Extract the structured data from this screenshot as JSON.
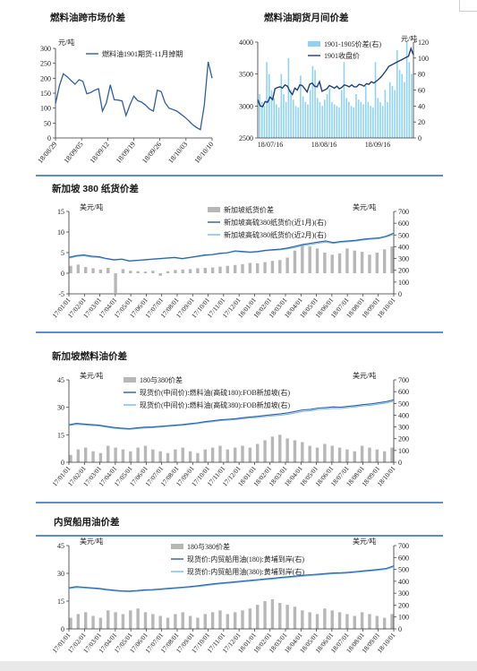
{
  "sections": {
    "title1": "燃料油跨市场价差",
    "title2": "燃料油期货月间价差",
    "title3": "新加坡 380 纸货价差",
    "title4": "新加坡燃料油价差",
    "title5": "内贸船用油价差"
  },
  "colors": {
    "rule": "#5b8ec9",
    "line_dark": "#2e5fa3",
    "line_light": "#79b8e6",
    "bar_grey": "#b7b7b7",
    "bar_grey_dark": "#7f7f7f",
    "bar_cyan": "#8ed3f5"
  },
  "chart_data": [
    {
      "id": "c1",
      "type": "line",
      "unit": "元/吨",
      "ylim": [
        0,
        300
      ],
      "yticks": [
        0,
        50,
        100,
        150,
        200,
        250,
        300
      ],
      "xticks": [
        "18/08/29",
        "18/09/05",
        "18/09/12",
        "18/09/19",
        "18/09/26",
        "18/10/03",
        "18/10/10"
      ],
      "legend": "top-right",
      "series": [
        {
          "name": "燃料油1901期货-11月掉期",
          "values": [
            115,
            175,
            215,
            205,
            192,
            180,
            195,
            190,
            148,
            152,
            160,
            165,
            90,
            118,
            178,
            128,
            127,
            124,
            75,
            110,
            140,
            125,
            120,
            110,
            97,
            90,
            160,
            155,
            118,
            100,
            95,
            90,
            80,
            70,
            58,
            45,
            35,
            28,
            110,
            255,
            200
          ]
        }
      ]
    },
    {
      "id": "c2",
      "type": "line",
      "unit": "元/吨",
      "ylim_left": [
        2500,
        4000
      ],
      "yticks_left": [
        2500,
        3000,
        3500,
        4000
      ],
      "ylim_right": [
        0,
        120
      ],
      "yticks_right": [
        0,
        20,
        40,
        60,
        80,
        100,
        120
      ],
      "xticks": [
        "18/07/16",
        "18/08/16",
        "18/09/16"
      ],
      "legend": "top-right",
      "series": [
        {
          "name": "1901-1905价差(右)",
          "kind": "bar",
          "axis": "right",
          "values": [
            55,
            45,
            40,
            95,
            80,
            60,
            50,
            42,
            38,
            80,
            55,
            45,
            100,
            60,
            48,
            40,
            38,
            78,
            52,
            45,
            42,
            60,
            90,
            85,
            50,
            45,
            40,
            48,
            55,
            62,
            45,
            42,
            40,
            38,
            60,
            95,
            50,
            45,
            40,
            38,
            55,
            48,
            45,
            42,
            65,
            45,
            40,
            38,
            95,
            50,
            45,
            40,
            60,
            45,
            70,
            65,
            60,
            110,
            85,
            80,
            70,
            120,
            95,
            80
          ]
        },
        {
          "name": "1901收盘价",
          "kind": "line",
          "axis": "left",
          "values": [
            3100,
            3000,
            2990,
            3070,
            3060,
            3140,
            3100,
            3270,
            3290,
            3300,
            3280,
            3330,
            3310,
            3230,
            3180,
            3280,
            3250,
            3330,
            3320,
            3270,
            3220,
            3340,
            3360,
            3310,
            3300,
            3380,
            3230,
            3250,
            3270,
            3320,
            3300,
            3280,
            3310,
            3270,
            3290,
            3330,
            3320,
            3300,
            3330,
            3300,
            3300,
            3340,
            3330,
            3310,
            3350,
            3340,
            3380,
            3360,
            3390,
            3420,
            3460,
            3510,
            3560,
            3620,
            3640,
            3660,
            3680,
            3700,
            3720,
            3740,
            3760,
            3780,
            3900,
            3800
          ]
        }
      ]
    },
    {
      "id": "c3",
      "type": "line",
      "unit_left": "美元/吨",
      "unit_right": "美元/吨",
      "ylim_left": [
        -5,
        15
      ],
      "yticks_left": [
        -5,
        0,
        5,
        10,
        15
      ],
      "ylim_right": [
        0,
        700
      ],
      "yticks_right": [
        0,
        100,
        200,
        300,
        400,
        500,
        600,
        700
      ],
      "xticks": [
        "17/01/01",
        "17/02/01",
        "17/03/01",
        "17/04/01",
        "17/05/01",
        "17/06/01",
        "17/07/01",
        "17/08/01",
        "17/09/01",
        "17/10/01",
        "17/11/01",
        "17/12/01",
        "18/01/01",
        "18/02/01",
        "18/03/01",
        "18/04/01",
        "18/05/01",
        "18/06/01",
        "18/07/01",
        "18/08/01",
        "18/09/01",
        "18/10/01"
      ],
      "legend": "top-center",
      "series": [
        {
          "name": "新加坡纸货价差",
          "kind": "bar",
          "axis": "left",
          "values": [
            1.8,
            2.1,
            1.5,
            1.2,
            0.9,
            1.3,
            -4.8,
            1.0,
            0.6,
            0.5,
            0.4,
            0.6,
            -0.6,
            0.5,
            0.8,
            0.9,
            1.0,
            1.2,
            1.3,
            1.4,
            1.6,
            1.8,
            2.0,
            2.2,
            2.5,
            2.4,
            2.7,
            3.0,
            3.2,
            3.8,
            5.5,
            7.0,
            6.5,
            6.0,
            5.0,
            4.5,
            4.8,
            6.0,
            5.5,
            5.2,
            4.5,
            5.0,
            5.8,
            6.5
          ]
        },
        {
          "name": "新加坡高硫380纸货价(近1月)(右)",
          "kind": "line",
          "axis": "right",
          "values": [
            310,
            325,
            330,
            320,
            315,
            300,
            290,
            295,
            280,
            285,
            290,
            295,
            300,
            305,
            310,
            300,
            310,
            320,
            330,
            335,
            345,
            350,
            365,
            360,
            355,
            360,
            370,
            375,
            380,
            390,
            405,
            420,
            430,
            440,
            450,
            435,
            445,
            450,
            455,
            465,
            470,
            475,
            490,
            515
          ]
        },
        {
          "name": "新加坡高硫380纸货价(近2月)(右)",
          "kind": "line",
          "axis": "right",
          "values": [
            303,
            318,
            323,
            312,
            308,
            296,
            286,
            292,
            276,
            281,
            286,
            292,
            296,
            302,
            306,
            296,
            307,
            315,
            325,
            330,
            340,
            346,
            360,
            354,
            350,
            355,
            365,
            370,
            374,
            383,
            395,
            410,
            420,
            430,
            440,
            428,
            438,
            443,
            448,
            458,
            464,
            468,
            483,
            505
          ]
        }
      ]
    },
    {
      "id": "c4",
      "type": "line",
      "unit_left": "美元/吨",
      "unit_right": "美元/吨",
      "ylim_left": [
        0,
        45
      ],
      "yticks_left": [
        0,
        15,
        30,
        45
      ],
      "ylim_right": [
        0,
        700
      ],
      "yticks_right": [
        0,
        100,
        200,
        300,
        400,
        500,
        600,
        700
      ],
      "xticks": [
        "17/01/01",
        "17/02/01",
        "17/03/01",
        "17/04/01",
        "17/05/01",
        "17/06/01",
        "17/07/01",
        "17/08/01",
        "17/09/01",
        "17/10/01",
        "17/11/01",
        "17/12/01",
        "18/01/01",
        "18/02/01",
        "18/03/01",
        "18/04/01",
        "18/05/01",
        "18/06/01",
        "18/07/01",
        "18/08/01",
        "18/09/01",
        "18/10/01"
      ],
      "legend": "top-center",
      "series": [
        {
          "name": "180与380价差",
          "kind": "bar",
          "axis": "left",
          "values": [
            4,
            7,
            8,
            6,
            5,
            9,
            8,
            7,
            6,
            8,
            9,
            7,
            6,
            5,
            7,
            8,
            6,
            5,
            7,
            8,
            9,
            7,
            8,
            9,
            8,
            10,
            12,
            14,
            15,
            13,
            12,
            11,
            9,
            8,
            10,
            9,
            8,
            7,
            6,
            9,
            8,
            7,
            6,
            8
          ]
        },
        {
          "name": "现货价(中间价):燃料油(高硫180):FOB新加坡(右)",
          "kind": "line",
          "axis": "right",
          "values": [
            318,
            330,
            325,
            320,
            315,
            305,
            295,
            290,
            285,
            292,
            298,
            300,
            305,
            310,
            315,
            320,
            328,
            335,
            345,
            352,
            360,
            365,
            370,
            378,
            385,
            390,
            398,
            405,
            412,
            420,
            432,
            445,
            450,
            460,
            465,
            470,
            468,
            475,
            482,
            490,
            496,
            505,
            515,
            530
          ]
        },
        {
          "name": "现货价(中间价):燃料油(高硫380):FOB新加坡(右)",
          "kind": "line",
          "axis": "right",
          "values": [
            312,
            322,
            318,
            313,
            308,
            298,
            288,
            284,
            279,
            286,
            291,
            294,
            299,
            304,
            309,
            314,
            321,
            329,
            338,
            345,
            353,
            358,
            363,
            370,
            377,
            381,
            388,
            394,
            400,
            408,
            420,
            432,
            438,
            448,
            453,
            458,
            457,
            464,
            471,
            479,
            485,
            494,
            504,
            518
          ]
        }
      ]
    },
    {
      "id": "c5",
      "type": "line",
      "unit_left": "美元/吨",
      "unit_right": "美元/吨",
      "ylim_left": [
        0,
        45
      ],
      "yticks_left": [
        0,
        15,
        30,
        45
      ],
      "ylim_right": [
        0,
        700
      ],
      "yticks_right": [
        0,
        100,
        200,
        300,
        400,
        500,
        600,
        700
      ],
      "xticks": [
        "17/01/01",
        "17/02/01",
        "17/03/01",
        "17/04/01",
        "17/05/01",
        "17/06/01",
        "17/07/01",
        "17/08/01",
        "17/09/01",
        "17/10/01",
        "17/11/01",
        "17/12/01",
        "18/01/01",
        "18/02/01",
        "18/03/01",
        "18/04/01",
        "18/05/01",
        "18/06/01",
        "18/07/01",
        "18/08/01",
        "18/09/01",
        "18/10/01"
      ],
      "legend": "top-center",
      "series": [
        {
          "name": "180与380价差",
          "kind": "bar",
          "axis": "left",
          "values": [
            6,
            8,
            9,
            7,
            6,
            10,
            9,
            8,
            10,
            11,
            9,
            8,
            7,
            6,
            8,
            9,
            7,
            6,
            8,
            9,
            10,
            8,
            9,
            10,
            11,
            13,
            15,
            16,
            14,
            13,
            12,
            10,
            9,
            8,
            11,
            10,
            9,
            8,
            7,
            9,
            8,
            7,
            6,
            8
          ]
        },
        {
          "name": "现货价:内贸船用油(180):黄埔到岸(右)",
          "kind": "line",
          "axis": "right",
          "values": [
            345,
            355,
            350,
            345,
            340,
            332,
            325,
            320,
            318,
            322,
            328,
            330,
            335,
            340,
            345,
            350,
            355,
            362,
            370,
            378,
            385,
            390,
            396,
            402,
            408,
            414,
            420,
            426,
            432,
            438,
            444,
            450,
            455,
            460,
            465,
            470,
            472,
            476,
            482,
            488,
            494,
            500,
            508,
            530
          ]
        },
        {
          "name": "现货价:内贸船用油(380):黄埔到岸(右)",
          "kind": "line",
          "axis": "right",
          "values": [
            338,
            348,
            344,
            339,
            334,
            326,
            319,
            314,
            312,
            316,
            322,
            324,
            329,
            334,
            339,
            344,
            349,
            356,
            363,
            371,
            378,
            383,
            389,
            395,
            401,
            407,
            413,
            419,
            425,
            431,
            437,
            443,
            448,
            453,
            458,
            463,
            465,
            469,
            475,
            481,
            487,
            493,
            501,
            522
          ]
        }
      ]
    }
  ]
}
